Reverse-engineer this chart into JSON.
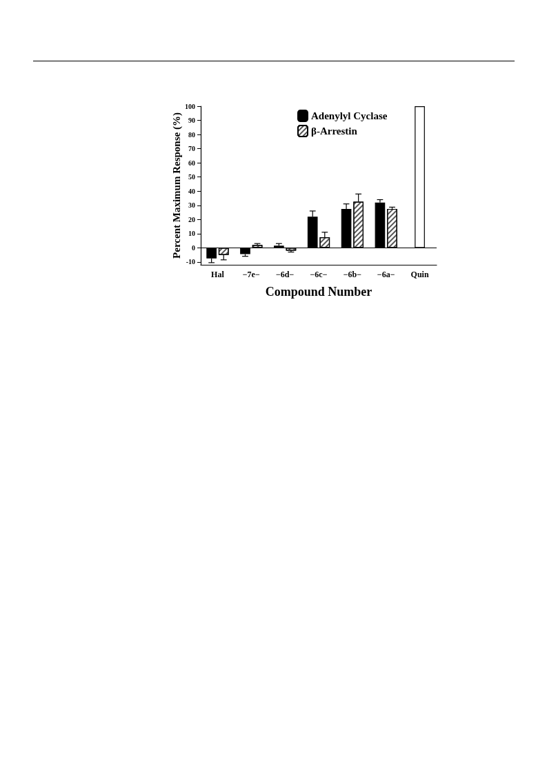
{
  "chart_data": {
    "type": "bar",
    "xlabel": "Compound Number",
    "ylabel": "Percent Maximum Response (%)",
    "categories": [
      "Hal",
      "−7e−",
      "−6d−",
      "−6c−",
      "−6b−",
      "−6a−",
      "Quin"
    ],
    "series": [
      {
        "name": "Adenylyl Cyclase",
        "color": "#000000",
        "values": [
          -7.5,
          -4.5,
          1.5,
          22,
          27.5,
          32,
          null
        ],
        "errors": [
          3,
          1.5,
          1.5,
          4,
          3.5,
          2,
          null
        ]
      },
      {
        "name": "β-Arrestin",
        "color": "#ffffff",
        "values": [
          -5,
          2,
          -2,
          7.5,
          32.5,
          27.5,
          null
        ],
        "errors": [
          3.5,
          1,
          1,
          3.5,
          5.5,
          1.2,
          null
        ]
      },
      {
        "color": "#ffffff",
        "values": [
          null,
          null,
          null,
          null,
          null,
          null,
          100
        ]
      }
    ],
    "ylim": [
      -12,
      100
    ],
    "yticks": [
      -10,
      0,
      10,
      20,
      30,
      40,
      50,
      60,
      70,
      80,
      90,
      100
    ],
    "grid": false,
    "ref_lines": [
      {
        "axis": "y",
        "value": 0,
        "color": "#000000"
      }
    ],
    "legend": "top right"
  }
}
